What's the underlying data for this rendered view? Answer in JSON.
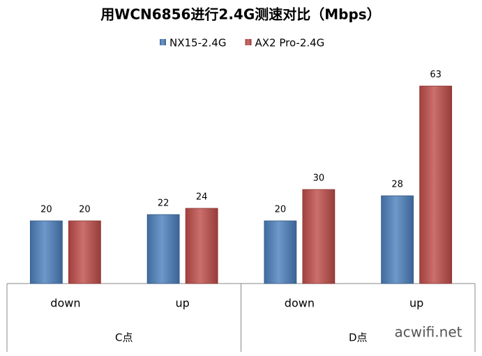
{
  "chart_data": {
    "type": "bar",
    "title": "用WCN6856进行2.4G测速对比（Mbps）",
    "groups": [
      {
        "name": "C点",
        "categories": [
          "down",
          "up"
        ]
      },
      {
        "name": "D点",
        "categories": [
          "down",
          "up"
        ]
      }
    ],
    "series": [
      {
        "name": "NX15-2.4G",
        "color": "#4a7ebb",
        "values": [
          20,
          22,
          20,
          28
        ]
      },
      {
        "name": "AX2 Pro-2.4G",
        "color": "#be4b48",
        "values": [
          20,
          24,
          30,
          63
        ]
      }
    ],
    "ylim": [
      0,
      70
    ],
    "legend": "top",
    "watermark": "acwifi.net"
  }
}
